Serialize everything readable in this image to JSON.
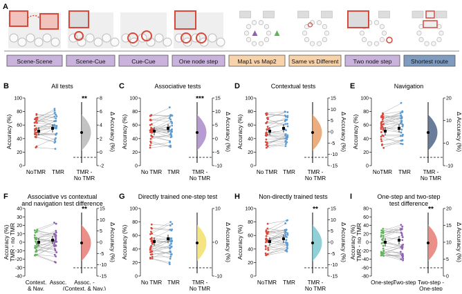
{
  "figure": {
    "panel_letters": [
      "A",
      "B",
      "C",
      "D",
      "E",
      "F",
      "G",
      "H",
      "I"
    ],
    "colors": {
      "red": "#d9473a",
      "blue": "#5a9bd4",
      "purple_box": "#c9b2dc",
      "orange_box": "#f8d2a9",
      "blue_box": "#7f9bbf",
      "gray_line": "#9a9a9a",
      "violin_gray": "#b8b8b8",
      "violin_purple": "#a98bc8",
      "violin_orange": "#e8a06a",
      "violin_navy": "#4f6587",
      "violin_red": "#e77b74",
      "violin_yellow": "#f2e06b",
      "violin_teal": "#7cc8cf",
      "green": "#5fb45a",
      "purple": "#8f5fb4"
    }
  },
  "task_labels": [
    {
      "label": "Scene-Scene",
      "color": "purple"
    },
    {
      "label": "Scene-Cue",
      "color": "purple"
    },
    {
      "label": "Cue-Cue",
      "color": "purple"
    },
    {
      "label": "One node step",
      "color": "purple"
    },
    {
      "label": "Map1 vs Map2",
      "color": "orange"
    },
    {
      "label": "Same vs Different",
      "color": "orange"
    },
    {
      "label": "Two node step",
      "color": "purple"
    },
    {
      "label": "Shortest route",
      "color": "blue"
    }
  ],
  "panels": [
    {
      "letter": "B",
      "title": "All tests",
      "ylabel": "Accuracy (%)",
      "ticks_left": [
        "100",
        "80",
        "60",
        "40",
        "20",
        "0"
      ],
      "ylabel2": "Δ Accuracy (%)",
      "ticks_right": [
        "8",
        "6",
        "4",
        "2",
        "0",
        "-2"
      ],
      "xlabels": [
        "NoTMR",
        "TMR"
      ],
      "diff_label": [
        "TMR -",
        "No TMR"
      ],
      "sig": "**",
      "violin": "violin_gray"
    },
    {
      "letter": "C",
      "title": "Associative tests",
      "ylabel": "Accuracy (%)",
      "ticks_left": [
        "100",
        "80",
        "60",
        "40",
        "20",
        "0"
      ],
      "ylabel2": "Δ Accuracy (%)",
      "ticks_right": [
        "15",
        "10",
        "5",
        "0",
        "-5",
        "-10"
      ],
      "xlabels": [
        "No TMR",
        "TMR"
      ],
      "diff_label": [
        "TMR -",
        "No TMR"
      ],
      "sig": "***",
      "violin": "violin_purple"
    },
    {
      "letter": "D",
      "title": "Contextual tests",
      "ylabel": "Accuracy (%)",
      "ticks_left": [
        "100",
        "80",
        "60",
        "40",
        "20",
        "0"
      ],
      "ylabel2": "Δ Accuracy (%)",
      "ticks_right": [
        "15",
        "10",
        "5",
        "0",
        "-5",
        "-10",
        "-15"
      ],
      "xlabels": [
        "No TMR",
        "TMR"
      ],
      "diff_label": [
        "TMR -",
        "No TMR"
      ],
      "sig": "",
      "violin": "violin_orange"
    },
    {
      "letter": "E",
      "title": "Navigation",
      "ylabel": "Accuracy (%)",
      "ticks_left": [
        "100",
        "80",
        "60",
        "40",
        "20",
        "0"
      ],
      "ylabel2": "Δ Accuracy (%)",
      "ticks_right": [
        "20",
        "10",
        "0",
        "-10"
      ],
      "xlabels": [
        "NoTMR",
        "TMR"
      ],
      "diff_label": [
        "TMR -",
        "No TMR"
      ],
      "sig": "",
      "violin": "violin_navy"
    },
    {
      "letter": "F",
      "title": "Associative vs contextual",
      "title2": "and navigation test difference",
      "ylabel": "Accuracy (%)",
      "ylabel_b": "TMR - no TMR",
      "ticks_left": [
        "40",
        "30",
        "20",
        "10",
        "0",
        "-10",
        "-20",
        "-30",
        "-40"
      ],
      "ylabel2": "Δ Accuracy (%)",
      "ticks_right": [
        "15",
        "10",
        "5",
        "0",
        "-5",
        "-10",
        "-15"
      ],
      "xlabels": [
        "Context.",
        "Assoc."
      ],
      "xlabel_sub": "& Nav.",
      "diff_label": [
        "Assoc. -",
        "(Context. & Nav.)"
      ],
      "sig": "**",
      "violin": "violin_red"
    },
    {
      "letter": "G",
      "title": "Directly trained one-step test",
      "ylabel": "Accuracy (%)",
      "ticks_left": [
        "100",
        "80",
        "60",
        "40",
        "20",
        "0"
      ],
      "ylabel2": "Δ Accuracy (%)",
      "ticks_right": [
        "10",
        "0",
        "-10"
      ],
      "xlabels": [
        "No TMR",
        "TMR"
      ],
      "diff_label": [
        "TMR -",
        "No TMR"
      ],
      "sig": "",
      "violin": "violin_yellow"
    },
    {
      "letter": "H",
      "title": "Non-directly trained tests",
      "ylabel": "Accuracy (%)",
      "ticks_left": [
        "100",
        "80",
        "60",
        "40",
        "20",
        "0"
      ],
      "ylabel2": "Δ Accuracy (%)",
      "ticks_right": [
        "15",
        "10",
        "5",
        "0",
        "-5",
        "-10",
        "-15"
      ],
      "xlabels": [
        "NoTMR",
        "TMR"
      ],
      "diff_label": [
        "TMR -",
        "No TMR"
      ],
      "sig": "**",
      "violin": "violin_teal"
    },
    {
      "letter": "I",
      "title": "One-step and two-step",
      "title2": "test difference",
      "ylabel": "Accuracy (%)",
      "ylabel_b": "TMR - no TMR",
      "ticks_left": [
        "80",
        "60",
        "40",
        "20",
        "0",
        "-20",
        "-40",
        "-60",
        "-80"
      ],
      "ylabel2": "Δ Accuracy (%)",
      "ticks_right": [
        "20",
        "15",
        "10",
        "5",
        "0"
      ],
      "xlabels": [
        "One-step",
        "Two-step"
      ],
      "diff_label": [
        "Two-step -",
        "One-step"
      ],
      "sig": "**",
      "violin": "violin_red"
    }
  ]
}
